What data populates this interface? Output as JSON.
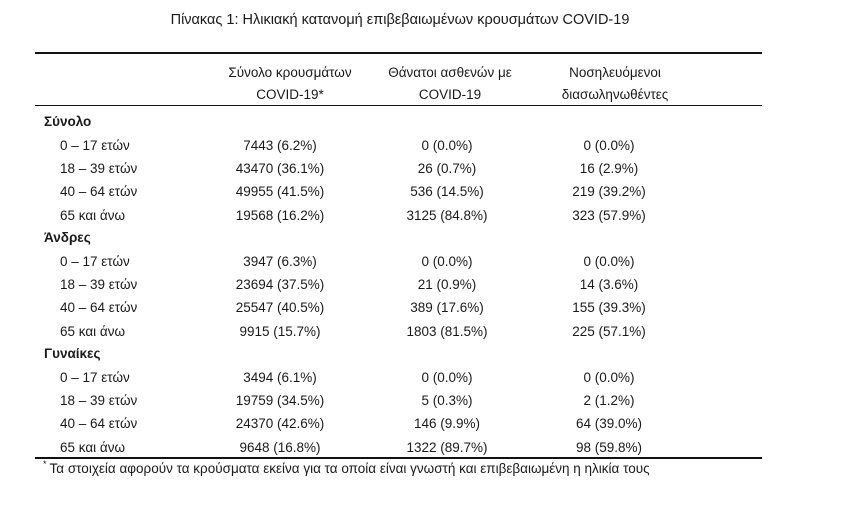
{
  "title": "Πίνακας 1: Ηλικιακή κατανομή επιβεβαιωμένων κρουσμάτων COVID-19",
  "columns": [
    {
      "line1": "Σύνολο κρουσμάτων",
      "line2": "COVID-19*"
    },
    {
      "line1": "Θάνατοι ασθενών με",
      "line2": "COVID-19"
    },
    {
      "line1": "Νοσηλευόμενοι",
      "line2": "διασωληνωθέντες"
    }
  ],
  "groups": [
    {
      "name": "Σύνολο",
      "rows": [
        {
          "label": "0 – 17 ετών",
          "cases": "7443 (6.2%)",
          "deaths": "0 (0.0%)",
          "icu": "0 (0.0%)"
        },
        {
          "label": "18 – 39 ετών",
          "cases": "43470 (36.1%)",
          "deaths": "26 (0.7%)",
          "icu": "16 (2.9%)"
        },
        {
          "label": "40 – 64 ετών",
          "cases": "49955 (41.5%)",
          "deaths": "536 (14.5%)",
          "icu": "219 (39.2%)"
        },
        {
          "label": "65 και άνω",
          "cases": "19568 (16.2%)",
          "deaths": "3125 (84.8%)",
          "icu": "323 (57.9%)"
        }
      ]
    },
    {
      "name": "Άνδρες",
      "rows": [
        {
          "label": "0 – 17 ετών",
          "cases": "3947 (6.3%)",
          "deaths": "0 (0.0%)",
          "icu": "0 (0.0%)"
        },
        {
          "label": "18 – 39 ετών",
          "cases": "23694 (37.5%)",
          "deaths": "21 (0.9%)",
          "icu": "14 (3.6%)"
        },
        {
          "label": "40 – 64 ετών",
          "cases": "25547 (40.5%)",
          "deaths": "389 (17.6%)",
          "icu": "155 (39.3%)"
        },
        {
          "label": "65 και άνω",
          "cases": "9915 (15.7%)",
          "deaths": "1803 (81.5%)",
          "icu": "225 (57.1%)"
        }
      ]
    },
    {
      "name": "Γυναίκες",
      "rows": [
        {
          "label": "0 – 17 ετών",
          "cases": "3494 (6.1%)",
          "deaths": "0 (0.0%)",
          "icu": "0 (0.0%)"
        },
        {
          "label": "18 – 39 ετών",
          "cases": "19759 (34.5%)",
          "deaths": "5 (0.3%)",
          "icu": "2 (1.2%)"
        },
        {
          "label": "40 – 64 ετών",
          "cases": "24370 (42.6%)",
          "deaths": "146 (9.9%)",
          "icu": "64 (39.0%)"
        },
        {
          "label": "65 και άνω",
          "cases": "9648 (16.8%)",
          "deaths": "1322 (89.7%)",
          "icu": "98 (59.8%)"
        }
      ]
    }
  ],
  "footnote": {
    "marker": "*",
    "text": "Τα στοιχεία αφορούν τα κρούσματα εκείνα για τα οποία είναι γνωστή και επιβεβαιωμένη η ηλικία τους"
  }
}
